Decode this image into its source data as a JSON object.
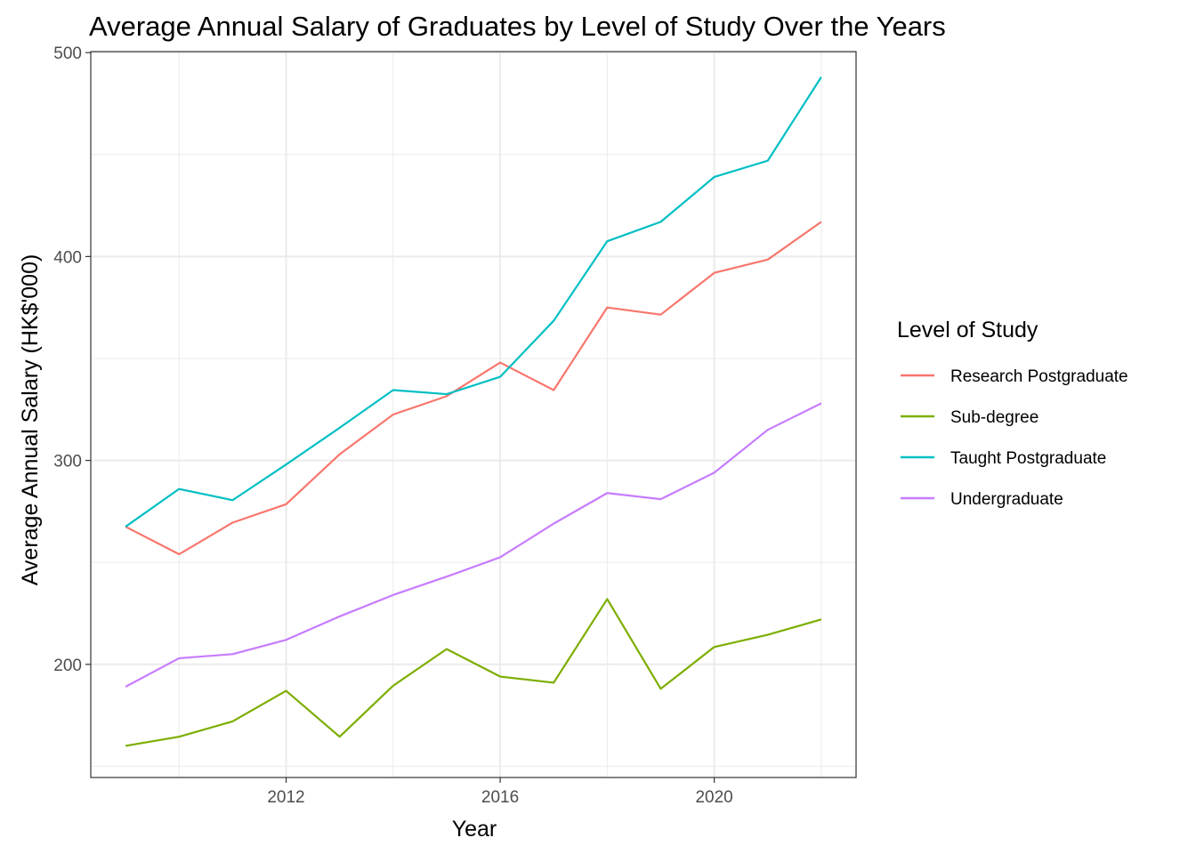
{
  "chart_data": {
    "type": "line",
    "title": "Average Annual Salary of Graduates by Level of Study Over the Years",
    "xlabel": "Year",
    "ylabel": "Average Annual Salary (HK$'000)",
    "x": [
      2009,
      2010,
      2011,
      2012,
      2013,
      2014,
      2015,
      2016,
      2017,
      2018,
      2019,
      2020,
      2021,
      2022
    ],
    "xlim": [
      2008.35,
      2022.65
    ],
    "ylim": [
      144.5,
      500.5
    ],
    "x_ticks": [
      2012,
      2016,
      2020
    ],
    "x_tick_labels": [
      "2012",
      "2016",
      "2020"
    ],
    "x_minor_ticks": [
      2010,
      2014,
      2018,
      2022
    ],
    "y_ticks": [
      200,
      300,
      400,
      500
    ],
    "y_tick_labels": [
      "200",
      "300",
      "400",
      "500"
    ],
    "y_minor_ticks": [
      150,
      250,
      350,
      450
    ],
    "grid": true,
    "legend": {
      "title": "Level of Study",
      "position": "right"
    },
    "series": [
      {
        "name": "Research Postgraduate",
        "color": "#F8766D",
        "values": [
          267.5,
          254,
          269.5,
          278.5,
          303,
          322.5,
          331.5,
          348,
          334.5,
          375,
          371.5,
          392,
          398.5,
          417
        ]
      },
      {
        "name": "Sub-degree",
        "color": "#7CAE00",
        "values": [
          160,
          164.5,
          172,
          187,
          164.5,
          189.5,
          207.5,
          194,
          191,
          232,
          188,
          208.5,
          214.5,
          222
        ]
      },
      {
        "name": "Taught Postgraduate",
        "color": "#00BFC4",
        "values": [
          267.5,
          286,
          280.5,
          298,
          316,
          334.5,
          332.5,
          341,
          368.5,
          407.5,
          417,
          439,
          447,
          488
        ]
      },
      {
        "name": "Undergraduate",
        "color": "#C77CFF",
        "values": [
          189,
          203,
          205,
          212,
          223.5,
          234,
          243,
          252.5,
          269,
          284,
          281,
          294,
          315,
          328
        ]
      }
    ]
  }
}
